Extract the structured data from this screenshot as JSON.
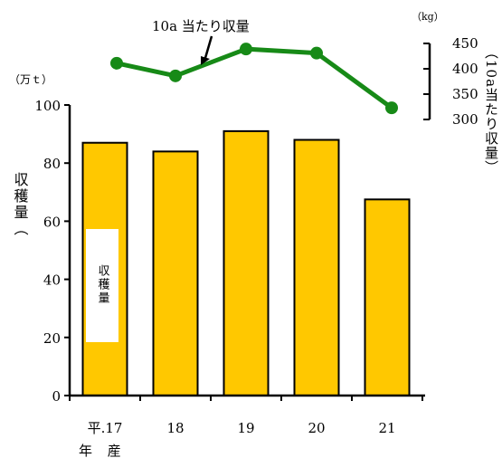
{
  "chart_data": {
    "type": "bar",
    "categories": [
      "平.17",
      "18",
      "19",
      "20",
      "21"
    ],
    "category_suffix": "年 産",
    "series": [
      {
        "name": "収穫量",
        "type": "bar",
        "axis": "left",
        "values": [
          87,
          84,
          91,
          88,
          67.5
        ],
        "color": "#FFC800"
      },
      {
        "name": "10a 当たり収量",
        "type": "line",
        "axis": "right",
        "values": [
          411,
          386,
          439,
          431,
          323
        ],
        "color": "#178A17"
      }
    ],
    "left_axis": {
      "unit": "（万ｔ）",
      "label": "収穫量（",
      "ylim": [
        0,
        100
      ],
      "ticks": [
        0,
        20,
        40,
        60,
        80,
        100
      ]
    },
    "right_axis": {
      "unit": "（kg）",
      "label": "（10a当たり収量）",
      "ylim": [
        300,
        450
      ],
      "ticks": [
        300,
        350,
        400,
        450
      ]
    },
    "grid": false
  }
}
